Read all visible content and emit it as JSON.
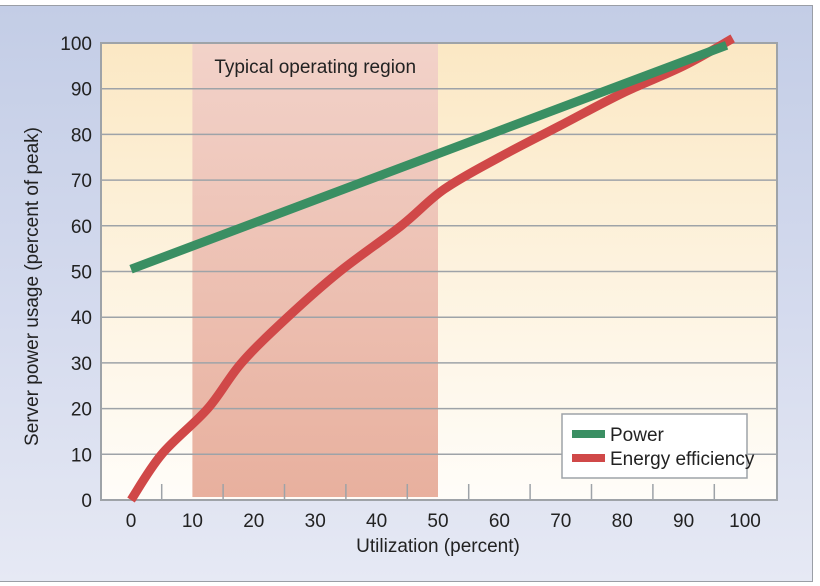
{
  "chart_data": {
    "type": "line",
    "title": "",
    "xlabel": "Utilization (percent)",
    "ylabel": "Server power usage (percent of peak)",
    "xlim": [
      0,
      100
    ],
    "ylim": [
      0,
      100
    ],
    "xticks": [
      0,
      10,
      20,
      30,
      40,
      50,
      60,
      70,
      80,
      90,
      100
    ],
    "yticks": [
      0,
      10,
      20,
      30,
      40,
      50,
      60,
      70,
      80,
      90,
      100
    ],
    "x_minor_ticks": [
      5,
      15,
      25,
      35,
      45,
      55,
      65,
      75,
      85,
      95
    ],
    "grid": "horizontal",
    "legend_position": "bottom-right",
    "shaded_region": {
      "label": "Typical operating region",
      "x_start": 10,
      "x_end": 50
    },
    "series": [
      {
        "name": "Power",
        "color": "#3a8f63",
        "points": [
          [
            0,
            50.5
          ],
          [
            97,
            99.5
          ]
        ]
      },
      {
        "name": "Energy efficiency",
        "color": "#d04848",
        "points": [
          [
            0,
            0
          ],
          [
            5,
            10
          ],
          [
            12.5,
            20
          ],
          [
            18,
            30
          ],
          [
            25.5,
            40
          ],
          [
            34,
            50
          ],
          [
            44,
            60
          ],
          [
            51,
            68
          ],
          [
            60,
            75
          ],
          [
            70,
            82
          ],
          [
            80,
            89
          ],
          [
            90,
            95
          ],
          [
            98,
            101
          ]
        ]
      }
    ]
  },
  "colors": {
    "frame_top": "#c3cde6",
    "frame_bottom": "#e6e9f4",
    "plot_top": "#fbe8c4",
    "plot_bottom": "#fffdf9",
    "region_top": "#f2d2c9",
    "region_bottom": "#e8b09e",
    "grid": "#9ea3a8"
  }
}
